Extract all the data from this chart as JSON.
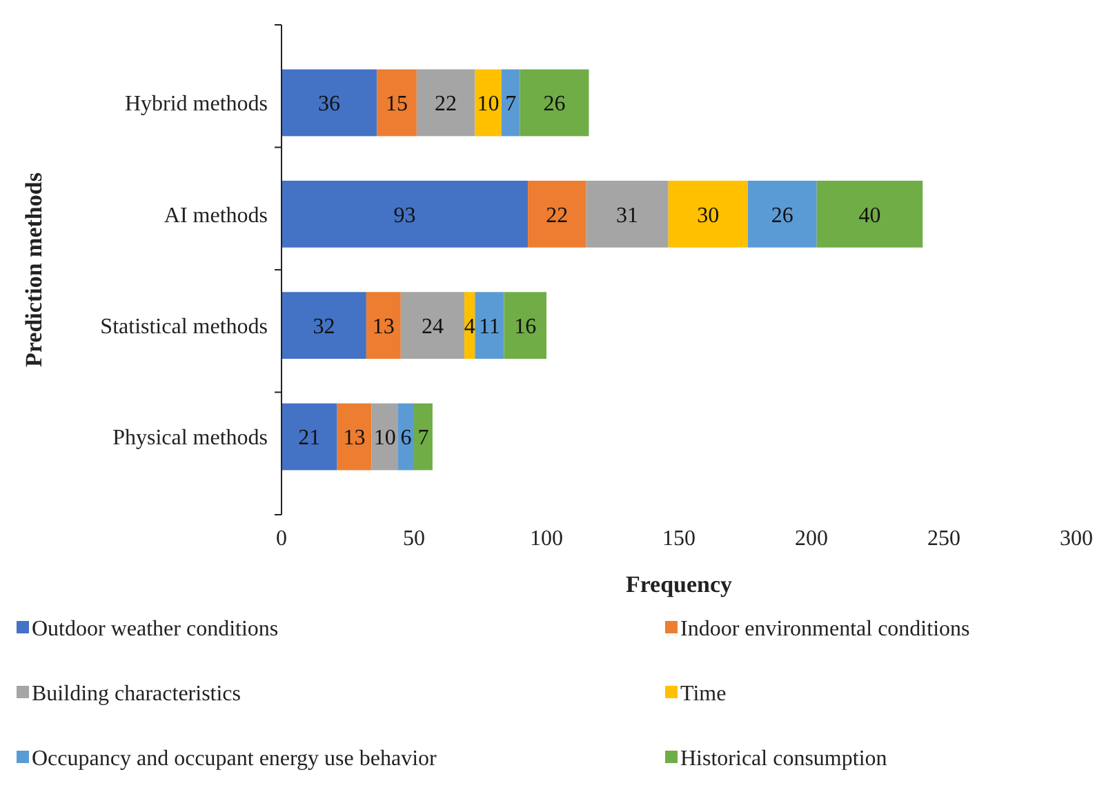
{
  "chart_data": {
    "type": "bar",
    "orientation": "horizontal",
    "stacked": true,
    "data_labels": true,
    "grid": false,
    "legend": "bottom",
    "xlabel": "Frequency",
    "ylabel": "Prediction methods",
    "categories": [
      "Hybrid methods",
      "AI methods",
      "Statistical methods",
      "Physical methods"
    ],
    "xlim": [
      0,
      300
    ],
    "xticks": [
      0,
      50,
      100,
      150,
      200,
      250,
      300
    ],
    "series": [
      {
        "name": "Outdoor weather conditions",
        "color": "#4472c4",
        "values": [
          36,
          93,
          32,
          21
        ]
      },
      {
        "name": "Indoor environmental conditions",
        "color": "#ed7d31",
        "values": [
          15,
          22,
          13,
          13
        ]
      },
      {
        "name": "Building characteristics",
        "color": "#a5a5a5",
        "values": [
          22,
          31,
          24,
          10
        ]
      },
      {
        "name": "Time",
        "color": "#ffc000",
        "values": [
          10,
          30,
          4,
          null
        ]
      },
      {
        "name": "Occupancy and occupant energy use behavior",
        "color": "#5b9bd5",
        "values": [
          7,
          26,
          11,
          6
        ]
      },
      {
        "name": "Historical consumption",
        "color": "#70ad47",
        "values": [
          26,
          40,
          16,
          7
        ]
      }
    ]
  }
}
